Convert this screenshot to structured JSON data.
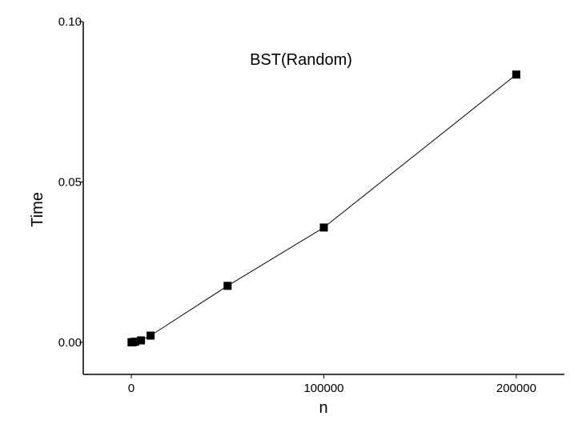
{
  "chart_data": {
    "type": "line",
    "title": "BST(Random)",
    "xlabel": "n",
    "ylabel": "Time",
    "xlim": [
      -25000,
      225000
    ],
    "ylim": [
      -0.01,
      0.1
    ],
    "x_ticks": [
      {
        "value": 0,
        "label": "0"
      },
      {
        "value": 100000,
        "label": "100000"
      },
      {
        "value": 200000,
        "label": "200000"
      }
    ],
    "y_ticks": [
      {
        "value": 0.0,
        "label": "0.00"
      },
      {
        "value": 0.05,
        "label": "0.05"
      },
      {
        "value": 0.1,
        "label": "0.10"
      }
    ],
    "series": [
      {
        "marker": "square",
        "color": "#000000",
        "x": [
          100,
          500,
          1000,
          2000,
          5000,
          10000,
          50000,
          100000,
          200000
        ],
        "y": [
          0.0,
          0.0,
          0.0001,
          0.0002,
          0.0006,
          0.0021,
          0.0176,
          0.0358,
          0.0835
        ]
      }
    ],
    "grid": false,
    "legend": "none"
  }
}
